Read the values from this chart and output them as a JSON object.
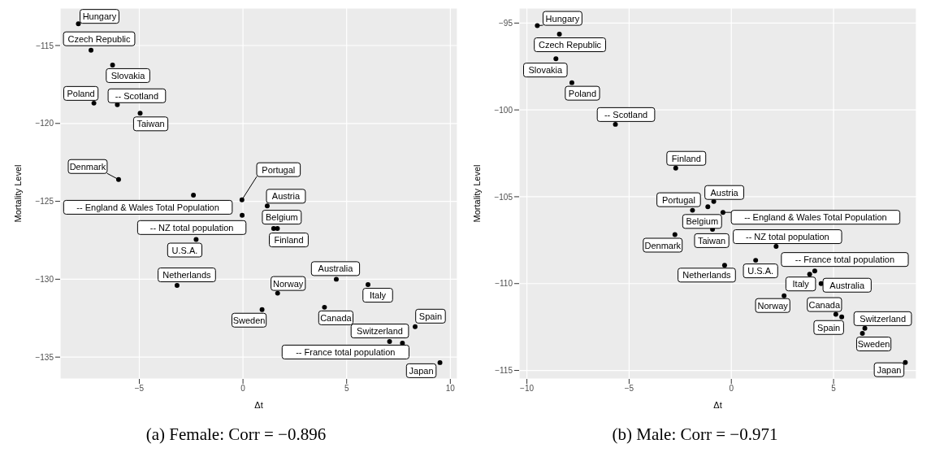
{
  "chart_data": [
    {
      "type": "scatter",
      "title": "(a) Female: Corr = −0.896",
      "xlabel": "Δt",
      "ylabel": "Mortality Level",
      "xlim": [
        -8.82,
        10.34
      ],
      "ylim": [
        -136.4,
        -112.6
      ],
      "xticks": [
        -5,
        0,
        5,
        10
      ],
      "yticks": [
        -135,
        -130,
        -125,
        -120,
        -115
      ],
      "grid": true,
      "marker": "circle",
      "series": [
        {
          "color": "#000000",
          "x": [
            -7.94,
            -7.33,
            -6.29,
            -7.19,
            -6.06,
            -4.96,
            -6.0,
            -2.39,
            -0.05,
            -0.04,
            -2.26,
            -3.18,
            1.17,
            1.48,
            1.66,
            4.5,
            6.03,
            1.67,
            0.92,
            3.93,
            8.3,
            7.07,
            7.69,
            9.5
          ],
          "values": [
            -113.6,
            -115.3,
            -116.25,
            -118.7,
            -118.8,
            -119.35,
            -123.6,
            -124.6,
            -124.9,
            -125.9,
            -127.45,
            -130.4,
            -125.3,
            -126.75,
            -126.75,
            -130.0,
            -130.35,
            -130.9,
            -131.95,
            -131.8,
            -133.05,
            -134.0,
            -134.1,
            -135.35
          ]
        }
      ],
      "annotations": [
        {
          "text": "Hungary",
          "x": -7.94,
          "y": -113.6
        },
        {
          "text": "Czech Republic",
          "x": -7.33,
          "y": -115.3
        },
        {
          "text": "Slovakia",
          "x": -6.29,
          "y": -116.25
        },
        {
          "text": "Poland",
          "x": -7.19,
          "y": -118.7
        },
        {
          "text": "-- Scotland",
          "x": -6.06,
          "y": -118.8
        },
        {
          "text": "Taiwan",
          "x": -4.96,
          "y": -119.35
        },
        {
          "text": "Denmark",
          "x": -6.0,
          "y": -123.6
        },
        {
          "text": "-- England & Wales Total Population",
          "x": -2.39,
          "y": -124.6
        },
        {
          "text": "Portugal",
          "x": -0.05,
          "y": -124.9
        },
        {
          "text": "-- NZ total population",
          "x": -0.04,
          "y": -125.9
        },
        {
          "text": "U.S.A.",
          "x": -2.26,
          "y": -127.45
        },
        {
          "text": "Netherlands",
          "x": -3.18,
          "y": -130.4
        },
        {
          "text": "Austria",
          "x": 1.17,
          "y": -125.3
        },
        {
          "text": "Belgium",
          "x": 1.48,
          "y": -126.75
        },
        {
          "text": "Finland",
          "x": 1.66,
          "y": -126.75
        },
        {
          "text": "Australia",
          "x": 4.5,
          "y": -130.0
        },
        {
          "text": "Italy",
          "x": 6.03,
          "y": -130.35
        },
        {
          "text": "Norway",
          "x": 1.67,
          "y": -130.9
        },
        {
          "text": "Sweden",
          "x": 0.92,
          "y": -131.95
        },
        {
          "text": "Canada",
          "x": 3.93,
          "y": -131.8
        },
        {
          "text": "Spain",
          "x": 8.3,
          "y": -133.05
        },
        {
          "text": "Switzerland",
          "x": 7.07,
          "y": -134.0
        },
        {
          "text": "-- France total population",
          "x": 7.69,
          "y": -134.1
        },
        {
          "text": "Japan",
          "x": 9.5,
          "y": -135.35
        }
      ]
    },
    {
      "type": "scatter",
      "title": "(b) Male: Corr = −0.971",
      "xlabel": "Δt",
      "ylabel": "Mortality Level",
      "xlim": [
        -10.38,
        9.05
      ],
      "ylim": [
        -115.49,
        -94.14
      ],
      "xticks": [
        -10,
        -5,
        0,
        5
      ],
      "yticks": [
        -115,
        -110,
        -105,
        -100,
        -95
      ],
      "grid": true,
      "marker": "circle",
      "series": [
        {
          "color": "#000000",
          "x": [
            -9.49,
            -8.41,
            -8.58,
            -7.8,
            -5.67,
            -2.72,
            -1.9,
            -2.76,
            -0.86,
            -1.15,
            -0.41,
            -0.92,
            2.19,
            1.19,
            -0.33,
            3.83,
            4.08,
            4.39,
            2.58,
            5.11,
            5.4,
            6.53,
            6.41,
            8.51
          ],
          "values": [
            -95.15,
            -95.64,
            -97.05,
            -98.43,
            -100.83,
            -103.35,
            -105.78,
            -107.18,
            -105.27,
            -105.58,
            -105.9,
            -106.87,
            -107.86,
            -108.66,
            -108.95,
            -109.46,
            -109.27,
            -110.0,
            -110.7,
            -111.77,
            -111.92,
            -112.58,
            -112.87,
            -114.54
          ]
        }
      ],
      "annotations": [
        {
          "text": "Hungary",
          "x": -9.49,
          "y": -95.15
        },
        {
          "text": "Czech Republic",
          "x": -8.41,
          "y": -95.64
        },
        {
          "text": "Slovakia",
          "x": -8.58,
          "y": -97.05
        },
        {
          "text": "Poland",
          "x": -7.8,
          "y": -98.43
        },
        {
          "text": "-- Scotland",
          "x": -5.67,
          "y": -100.83
        },
        {
          "text": "Finland",
          "x": -2.72,
          "y": -103.35
        },
        {
          "text": "Portugal",
          "x": -1.9,
          "y": -105.78
        },
        {
          "text": "Denmark",
          "x": -2.76,
          "y": -107.18
        },
        {
          "text": "Austria",
          "x": -0.86,
          "y": -105.27
        },
        {
          "text": "Belgium",
          "x": -1.15,
          "y": -105.58
        },
        {
          "text": "-- England & Wales Total Population",
          "x": -0.41,
          "y": -105.9
        },
        {
          "text": "Taiwan",
          "x": -0.92,
          "y": -106.87
        },
        {
          "text": "-- NZ total population",
          "x": 2.19,
          "y": -107.86
        },
        {
          "text": "U.S.A.",
          "x": 1.19,
          "y": -108.66
        },
        {
          "text": "Netherlands",
          "x": -0.33,
          "y": -108.95
        },
        {
          "text": "Italy",
          "x": 3.83,
          "y": -109.46
        },
        {
          "text": "-- France total population",
          "x": 4.08,
          "y": -109.27
        },
        {
          "text": "Australia",
          "x": 4.39,
          "y": -110.0
        },
        {
          "text": "Norway",
          "x": 2.58,
          "y": -110.7
        },
        {
          "text": "Canada",
          "x": 5.11,
          "y": -111.77
        },
        {
          "text": "Spain",
          "x": 5.4,
          "y": -111.92
        },
        {
          "text": "Switzerland",
          "x": 6.53,
          "y": -112.58
        },
        {
          "text": "Sweden",
          "x": 6.41,
          "y": -112.87
        },
        {
          "text": "Japan",
          "x": 8.51,
          "y": -114.54
        }
      ]
    }
  ]
}
